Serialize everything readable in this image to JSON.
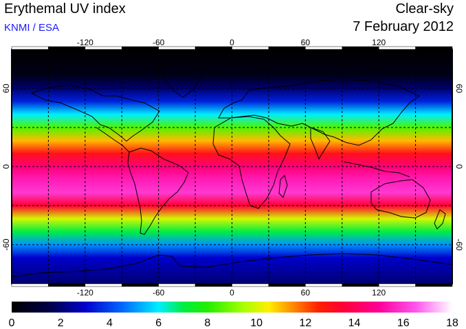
{
  "header": {
    "title": "Erythemal UV index",
    "subtitle": "KNMI / ESA",
    "mode": "Clear-sky",
    "date": "7 February 2012"
  },
  "map": {
    "projection": "equirectangular",
    "lon_range": [
      -180,
      180
    ],
    "lat_range": [
      -90,
      90
    ],
    "lon_ticks": [
      "-120",
      "-60",
      "0",
      "60",
      "120"
    ],
    "lat_ticks": [
      "60",
      "0",
      "-60"
    ],
    "colors": {
      "frame": "#000000",
      "grid": "#000000",
      "coastline": "#000000"
    },
    "grid": "dashed every 30 degrees",
    "uv_profile_by_latitude": [
      {
        "lat": 90,
        "uv": 0
      },
      {
        "lat": 70,
        "uv": 0.5
      },
      {
        "lat": 60,
        "uv": 2
      },
      {
        "lat": 50,
        "uv": 3.5
      },
      {
        "lat": 40,
        "uv": 6
      },
      {
        "lat": 30,
        "uv": 8.5
      },
      {
        "lat": 20,
        "uv": 11
      },
      {
        "lat": 10,
        "uv": 13
      },
      {
        "lat": 0,
        "uv": 14.5
      },
      {
        "lat": -10,
        "uv": 15.5
      },
      {
        "lat": -20,
        "uv": 16
      },
      {
        "lat": -30,
        "uv": 13.5
      },
      {
        "lat": -40,
        "uv": 10
      },
      {
        "lat": -50,
        "uv": 7
      },
      {
        "lat": -60,
        "uv": 5
      },
      {
        "lat": -70,
        "uv": 3
      },
      {
        "lat": -90,
        "uv": 2
      }
    ]
  },
  "colorbar": {
    "min": 0,
    "max": 18,
    "ticks": [
      "0",
      "2",
      "4",
      "6",
      "8",
      "10",
      "12",
      "14",
      "16",
      "18"
    ],
    "stops": [
      {
        "value": 0,
        "color": "#000000"
      },
      {
        "value": 1.5,
        "color": "#000044"
      },
      {
        "value": 3,
        "color": "#0000cc"
      },
      {
        "value": 4.5,
        "color": "#0066ff"
      },
      {
        "value": 6,
        "color": "#00eeff"
      },
      {
        "value": 7,
        "color": "#00ee44"
      },
      {
        "value": 8,
        "color": "#22ee00"
      },
      {
        "value": 9.5,
        "color": "#aaff00"
      },
      {
        "value": 10.5,
        "color": "#ffee00"
      },
      {
        "value": 11.5,
        "color": "#ff8800"
      },
      {
        "value": 12.5,
        "color": "#ff2200"
      },
      {
        "value": 13.5,
        "color": "#ff0033"
      },
      {
        "value": 15,
        "color": "#ff0099"
      },
      {
        "value": 16.5,
        "color": "#ff55ee"
      },
      {
        "value": 18,
        "color": "#ffffff"
      }
    ]
  }
}
